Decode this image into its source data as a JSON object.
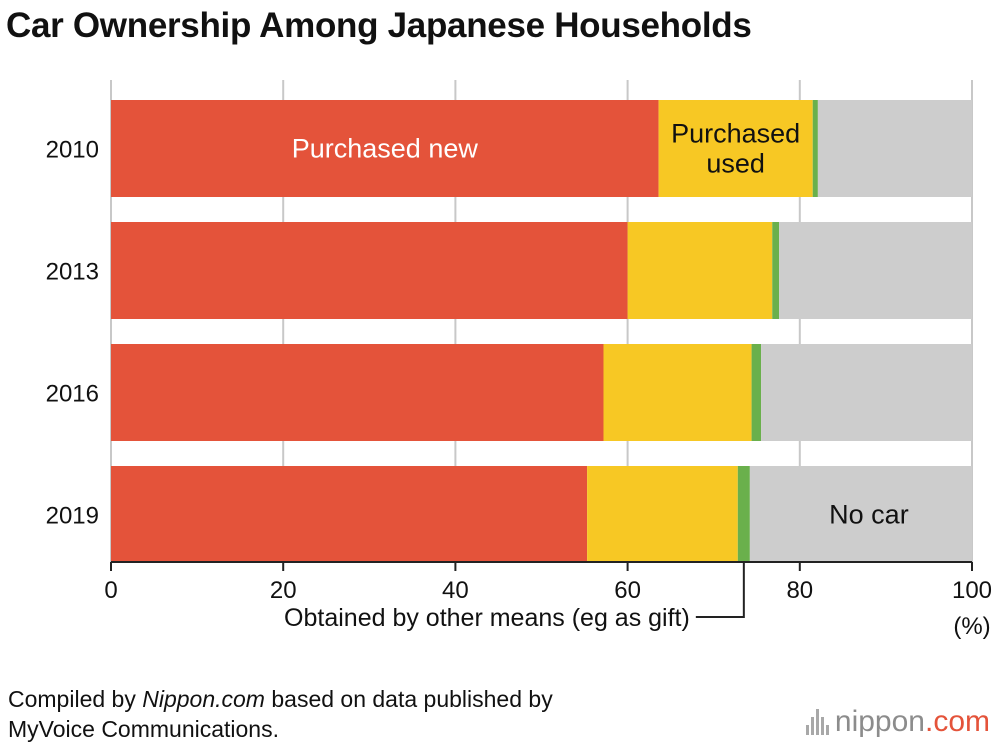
{
  "title": "Car Ownership Among Japanese Households",
  "source": {
    "prefix": "Compiled by ",
    "site": "Nippon.com",
    "suffix_line1": " based on data published by",
    "line2": "MyVoice Communications."
  },
  "logo": {
    "text": "nippon",
    "domain": ".com"
  },
  "colors": {
    "purchased_new": "#e4533a",
    "purchased_used": "#f7c824",
    "other_means": "#6ab04c",
    "no_car": "#cdcdcd",
    "grid": "#c8c8c8"
  },
  "chart_data": {
    "type": "bar",
    "orientation": "horizontal",
    "stacked": true,
    "categories": [
      "2010",
      "2013",
      "2016",
      "2019"
    ],
    "series": [
      {
        "name": "Purchased new",
        "values": [
          63.6,
          60.0,
          57.2,
          55.3
        ]
      },
      {
        "name": "Purchased used",
        "values": [
          17.9,
          16.8,
          17.2,
          17.5
        ]
      },
      {
        "name": "Obtained by other means (eg as gift)",
        "values": [
          0.6,
          0.8,
          1.1,
          1.4
        ]
      },
      {
        "name": "No car",
        "values": [
          17.9,
          22.4,
          24.5,
          25.8
        ]
      }
    ],
    "in_bar_labels": [
      {
        "text": "Purchased new",
        "series": 0,
        "category": "2010"
      },
      {
        "text": "Purchased\nused",
        "series": 1,
        "category": "2010"
      },
      {
        "text": "No car",
        "series": 3,
        "category": "2019"
      }
    ],
    "callout": {
      "text": "Obtained by other means (eg as gift)",
      "series": 2,
      "category": "2019"
    },
    "xlim": [
      0,
      100
    ],
    "xticks": [
      0,
      20,
      40,
      60,
      80,
      100
    ],
    "xunit": "(%)",
    "grid": true
  }
}
